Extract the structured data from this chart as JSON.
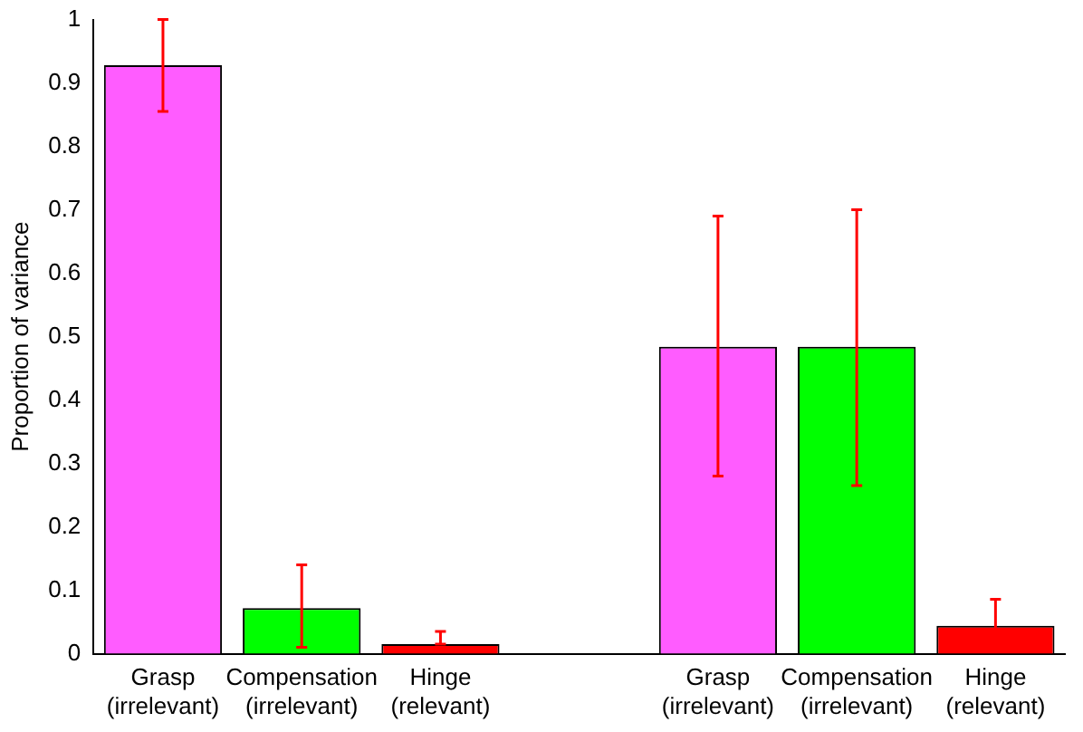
{
  "chart_data": {
    "type": "bar",
    "ylabel": "Proportion of variance",
    "categories": [
      "Grasp\n(irrelevant)",
      "Compensation\n(irrelevant)",
      "Hinge\n(relevant)",
      null,
      "Grasp\n(irrelevant)",
      "Compensation\n(irrelevant)",
      "Hinge\n(relevant)"
    ],
    "values": [
      0.928,
      0.072,
      0.015,
      null,
      0.484,
      0.484,
      0.044
    ],
    "colors": [
      "#ff5cff",
      "#00ff00",
      "#ff0000",
      "#ffffff",
      "#ff5cff",
      "#00ff00",
      "#ff0000"
    ],
    "errors": [
      [
        0.855,
        1.0
      ],
      [
        0.01,
        0.14
      ],
      [
        0.015,
        0.035
      ],
      null,
      [
        0.28,
        0.69
      ],
      [
        0.265,
        0.7
      ],
      [
        0.005,
        0.086
      ]
    ],
    "ylim": [
      0,
      1
    ],
    "yticks": [
      0,
      0.1,
      0.2,
      0.3,
      0.4,
      0.5,
      0.6,
      0.7,
      0.8,
      0.9,
      1
    ],
    "grid": false,
    "legend": false
  }
}
